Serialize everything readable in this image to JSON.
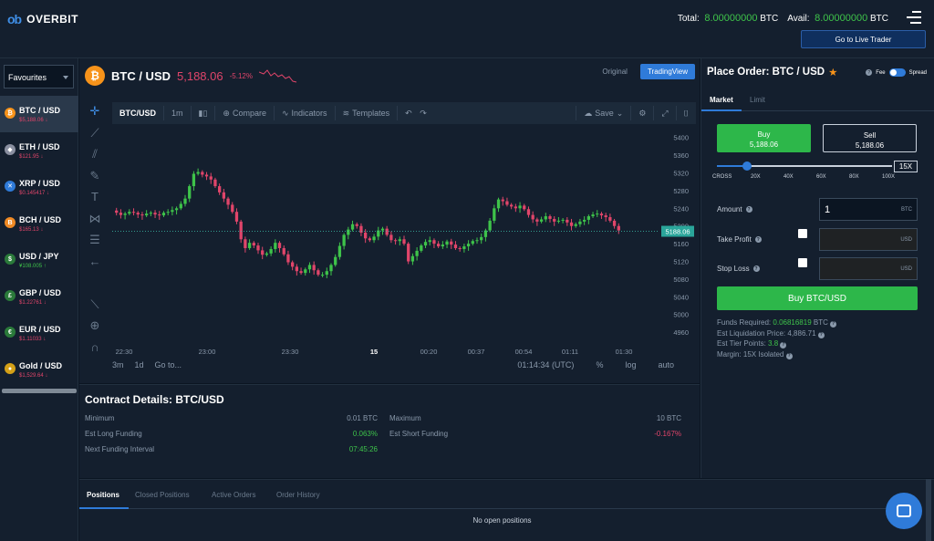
{
  "header": {
    "logo_mark": "ob",
    "logo_text": "OVERBIT",
    "total_label": "Total:",
    "total_value": "8.00000000",
    "total_unit": "BTC",
    "avail_label": "Avail:",
    "avail_value": "8.00000000",
    "avail_unit": "BTC",
    "live_trader_label": "Go to Live Trader"
  },
  "sidebar": {
    "select_value": "Favourites",
    "items": [
      {
        "symbol": "BTC / USD",
        "price": "$5,188.06",
        "trend": "red",
        "coin_color": "#f7931a",
        "glyph": "₿"
      },
      {
        "symbol": "ETH / USD",
        "price": "$121.95",
        "trend": "red",
        "coin_color": "#8a8fa0",
        "glyph": "◆"
      },
      {
        "symbol": "XRP / USD",
        "price": "$0.145417",
        "trend": "red",
        "coin_color": "#2f7bd9",
        "glyph": "✕"
      },
      {
        "symbol": "BCH / USD",
        "price": "$165.13",
        "trend": "red",
        "coin_color": "#f08a24",
        "glyph": "B"
      },
      {
        "symbol": "USD / JPY",
        "price": "¥108.005",
        "trend": "green",
        "coin_color": "#2a7a3a",
        "glyph": "$"
      },
      {
        "symbol": "GBP / USD",
        "price": "$1.22761",
        "trend": "red",
        "coin_color": "#2a7a3a",
        "glyph": "£"
      },
      {
        "symbol": "EUR / USD",
        "price": "$1.11033",
        "trend": "red",
        "coin_color": "#2a7a3a",
        "glyph": "€"
      },
      {
        "symbol": "Gold / USD",
        "price": "$1,529.64",
        "trend": "red",
        "coin_color": "#d4a017",
        "glyph": "●"
      }
    ]
  },
  "pair": {
    "glyph": "₿",
    "name": "BTC / USD",
    "price": "5,188.06",
    "change": "-5.12%",
    "view_original": "Original",
    "view_tradingview": "TradingView"
  },
  "chart_toolbar": {
    "symbol": "BTC/USD",
    "interval": "1m",
    "compare": "Compare",
    "indicators": "Indicators",
    "templates": "Templates",
    "save": "Save"
  },
  "chart_data": {
    "type": "candlestick",
    "title": "",
    "y_ticks": [
      5400,
      5360,
      5320,
      5280,
      5240,
      5200,
      5160,
      5120,
      5080,
      5040,
      5000,
      4960
    ],
    "x_ticks": [
      "22:30",
      "23:00",
      "23:30",
      "15",
      "00:20",
      "00:37",
      "00:54",
      "01:11",
      "01:30"
    ],
    "last_price_label": "5188.06",
    "last_price": 5188.06,
    "ylim": [
      4950,
      5420
    ],
    "close_series": [
      5235,
      5230,
      5225,
      5228,
      5232,
      5230,
      5226,
      5224,
      5228,
      5230,
      5226,
      5224,
      5230,
      5232,
      5236,
      5240,
      5250,
      5262,
      5290,
      5318,
      5322,
      5316,
      5312,
      5305,
      5290,
      5276,
      5262,
      5248,
      5232,
      5210,
      5170,
      5150,
      5162,
      5156,
      5145,
      5135,
      5138,
      5148,
      5162,
      5150,
      5136,
      5118,
      5108,
      5098,
      5094,
      5102,
      5112,
      5100,
      5090,
      5090,
      5098,
      5112,
      5130,
      5155,
      5180,
      5192,
      5204,
      5200,
      5185,
      5172,
      5168,
      5176,
      5190,
      5194,
      5180,
      5168,
      5166,
      5170,
      5160,
      5120,
      5132,
      5144,
      5156,
      5164,
      5168,
      5160,
      5154,
      5158,
      5165,
      5158,
      5150,
      5148,
      5154,
      5160,
      5166,
      5168,
      5175,
      5190,
      5212,
      5240,
      5260,
      5256,
      5248,
      5244,
      5240,
      5246,
      5238,
      5225,
      5215,
      5210,
      5215,
      5222,
      5216,
      5210,
      5212,
      5214,
      5208,
      5200,
      5204,
      5210,
      5214,
      5222,
      5226,
      5228,
      5224,
      5220,
      5212,
      5200,
      5190
    ]
  },
  "chart_footer": {
    "range_3m": "3m",
    "range_1d": "1d",
    "goto": "Go to...",
    "time": "01:14:34 (UTC)",
    "pct": "%",
    "log": "log",
    "auto": "auto"
  },
  "contract": {
    "title": "Contract Details: BTC/USD",
    "minimum_label": "Minimum",
    "minimum_value": "0.01 BTC",
    "maximum_label": "Maximum",
    "maximum_value": "10 BTC",
    "long_funding_label": "Est Long Funding",
    "long_funding_value": "0.063%",
    "short_funding_label": "Est Short Funding",
    "short_funding_value": "-0.167%",
    "next_funding_label": "Next Funding Interval",
    "next_funding_value": "07:45:26"
  },
  "order": {
    "title": "Place Order: BTC / USD",
    "fee_label": "Fee",
    "spread_label": "Spread",
    "tab_market": "Market",
    "tab_limit": "Limit",
    "buy_label": "Buy",
    "buy_price": "5,188.06",
    "sell_label": "Sell",
    "sell_price": "5,188.06",
    "leverage_value": "15X",
    "leverage_fraction": 0.15,
    "leverage_ticks": [
      "CROSS",
      "20X",
      "40X",
      "60X",
      "80X",
      "100X"
    ],
    "amount_label": "Amount",
    "amount_value": "1",
    "amount_unit": "BTC",
    "take_profit_label": "Take Profit",
    "take_profit_unit": "USD",
    "stop_loss_label": "Stop Loss",
    "stop_loss_unit": "USD",
    "submit_label": "Buy BTC/USD",
    "funds_required_label": "Funds Required:",
    "funds_required_value": "0.06816819",
    "funds_required_unit": "BTC",
    "liq_label": "Est Liquidation Price: 4,886.71",
    "tier_label": "Est Tier Points:",
    "tier_value": "3.8",
    "margin_label": "Margin: 15X Isolated"
  },
  "positions": {
    "tabs": [
      "Positions",
      "Closed Positions",
      "Active Orders",
      "Order History"
    ],
    "empty_text": "No open positions"
  },
  "colors": {
    "up": "#3ec34a",
    "down": "#e0456a",
    "accent": "#2f7bd9"
  }
}
